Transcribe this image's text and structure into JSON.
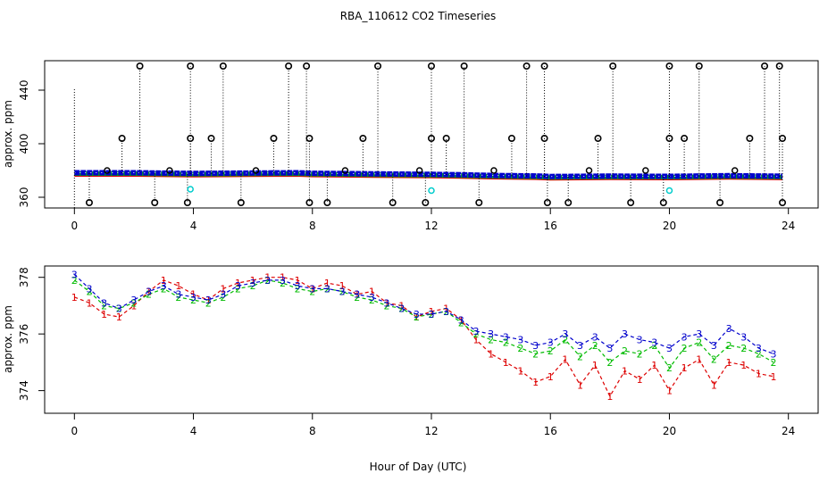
{
  "title": "RBA_110612  CO2 Timeseries",
  "xlabel": "Hour of Day (UTC)",
  "chart_data": [
    {
      "type": "scatter",
      "panel": "top",
      "ylabel": "approx. ppm",
      "xlim": [
        -1,
        25
      ],
      "ylim": [
        352,
        462
      ],
      "x_ticks": [
        0,
        4,
        8,
        12,
        16,
        20,
        24
      ],
      "x_tick_labels": [
        "0",
        "4",
        "8",
        "12",
        "16",
        "20",
        "24"
      ],
      "y_ticks": [
        360,
        400,
        440
      ],
      "y_tick_labels": [
        "360",
        "400",
        "440"
      ],
      "baseline": {
        "x": [
          0,
          2,
          4,
          6,
          7.5,
          8,
          10,
          12,
          13,
          14,
          15.5,
          16,
          18,
          20,
          22,
          23.8
        ],
        "y": [
          378,
          378,
          377.5,
          377.8,
          378,
          377.6,
          377.2,
          376.8,
          376.5,
          376,
          375.6,
          375.2,
          375.5,
          375.3,
          375.8,
          375.4
        ]
      },
      "cyan_points": [
        {
          "x": 3.9,
          "y": 366
        },
        {
          "x": 12.0,
          "y": 365
        },
        {
          "x": 20.0,
          "y": 365
        }
      ],
      "spikes_high": [
        2.2,
        3.9,
        5.0,
        7.2,
        7.8,
        10.2,
        12.0,
        13.1,
        15.2,
        15.8,
        18.1,
        20.0,
        21.0,
        23.2,
        23.7
      ],
      "spikes_high_value": 458,
      "spikes_mid": [
        1.6,
        3.9,
        4.6,
        6.7,
        7.9,
        9.7,
        12.0,
        12.5,
        14.7,
        15.8,
        17.6,
        20.0,
        20.5,
        22.7,
        23.8
      ],
      "spikes_mid_value": 404,
      "spikes_low": [
        0.5,
        2.7,
        3.8,
        5.6,
        7.9,
        8.5,
        10.7,
        11.8,
        13.6,
        15.9,
        16.6,
        18.7,
        19.8,
        21.7,
        23.8
      ],
      "spikes_low_value": 356,
      "small_bumps": [
        1.1,
        3.2,
        6.1,
        9.1,
        11.6,
        14.1,
        17.3,
        19.2,
        22.2
      ],
      "small_bumps_value": 380
    },
    {
      "type": "line",
      "panel": "bottom",
      "ylabel": "approx. ppm",
      "xlim": [
        -1,
        25
      ],
      "ylim": [
        373.2,
        378.4
      ],
      "x_ticks": [
        0,
        4,
        8,
        12,
        16,
        20,
        24
      ],
      "x_tick_labels": [
        "0",
        "4",
        "8",
        "12",
        "16",
        "20",
        "24"
      ],
      "y_ticks": [
        374,
        376,
        378
      ],
      "y_tick_labels": [
        "374",
        "376",
        "378"
      ],
      "series": [
        {
          "name": "1",
          "color": "#dd0000",
          "x": [
            0,
            0.5,
            1,
            1.5,
            2,
            2.5,
            3,
            3.5,
            4,
            4.5,
            5,
            5.5,
            6,
            6.5,
            7,
            7.5,
            8,
            8.5,
            9,
            9.5,
            10,
            10.5,
            11,
            11.5,
            12,
            12.5,
            13,
            13.5,
            14,
            14.5,
            15,
            15.5,
            16,
            16.5,
            17,
            17.5,
            18,
            18.5,
            19,
            19.5,
            20,
            20.5,
            21,
            21.5,
            22,
            22.5,
            23,
            23.5
          ],
          "y": [
            377.3,
            377.1,
            376.7,
            376.6,
            377.0,
            377.5,
            377.9,
            377.7,
            377.4,
            377.2,
            377.6,
            377.8,
            377.9,
            378.0,
            378.0,
            377.9,
            377.6,
            377.8,
            377.7,
            377.4,
            377.5,
            377.1,
            377.0,
            376.6,
            376.8,
            376.9,
            376.5,
            375.8,
            375.3,
            375.0,
            374.7,
            374.3,
            374.5,
            375.1,
            374.2,
            374.9,
            373.8,
            374.7,
            374.4,
            374.9,
            374.0,
            374.8,
            375.1,
            374.2,
            375.0,
            374.9,
            374.6,
            374.5
          ]
        },
        {
          "name": "2",
          "color": "#00bb00",
          "x": [
            0,
            0.5,
            1,
            1.5,
            2,
            2.5,
            3,
            3.5,
            4,
            4.5,
            5,
            5.5,
            6,
            6.5,
            7,
            7.5,
            8,
            8.5,
            9,
            9.5,
            10,
            10.5,
            11,
            11.5,
            12,
            12.5,
            13,
            13.5,
            14,
            14.5,
            15,
            15.5,
            16,
            16.5,
            17,
            17.5,
            18,
            18.5,
            19,
            19.5,
            20,
            20.5,
            21,
            21.5,
            22,
            22.5,
            23,
            23.5
          ],
          "y": [
            377.9,
            377.5,
            377.0,
            376.9,
            377.1,
            377.4,
            377.6,
            377.3,
            377.2,
            377.1,
            377.3,
            377.6,
            377.7,
            377.9,
            377.8,
            377.6,
            377.5,
            377.6,
            377.5,
            377.3,
            377.2,
            377.0,
            376.9,
            376.6,
            376.7,
            376.8,
            376.4,
            376.0,
            375.8,
            375.7,
            375.5,
            375.3,
            375.4,
            375.8,
            375.2,
            375.6,
            375.0,
            375.4,
            375.3,
            375.6,
            374.8,
            375.5,
            375.7,
            375.1,
            375.6,
            375.5,
            375.3,
            375.0
          ]
        },
        {
          "name": "3",
          "color": "#0000cc",
          "x": [
            0,
            0.5,
            1,
            1.5,
            2,
            2.5,
            3,
            3.5,
            4,
            4.5,
            5,
            5.5,
            6,
            6.5,
            7,
            7.5,
            8,
            8.5,
            9,
            9.5,
            10,
            10.5,
            11,
            11.5,
            12,
            12.5,
            13,
            13.5,
            14,
            14.5,
            15,
            15.5,
            16,
            16.5,
            17,
            17.5,
            18,
            18.5,
            19,
            19.5,
            20,
            20.5,
            21,
            21.5,
            22,
            22.5,
            23,
            23.5
          ],
          "y": [
            378.1,
            377.6,
            377.1,
            376.9,
            377.2,
            377.5,
            377.7,
            377.4,
            377.3,
            377.2,
            377.4,
            377.7,
            377.8,
            377.9,
            377.9,
            377.7,
            377.6,
            377.6,
            377.5,
            377.4,
            377.3,
            377.1,
            376.9,
            376.7,
            376.7,
            376.8,
            376.5,
            376.1,
            376.0,
            375.9,
            375.8,
            375.6,
            375.7,
            376.0,
            375.6,
            375.9,
            375.5,
            376.0,
            375.8,
            375.7,
            375.5,
            375.9,
            376.0,
            375.6,
            376.2,
            375.9,
            375.5,
            375.3
          ]
        }
      ]
    }
  ]
}
